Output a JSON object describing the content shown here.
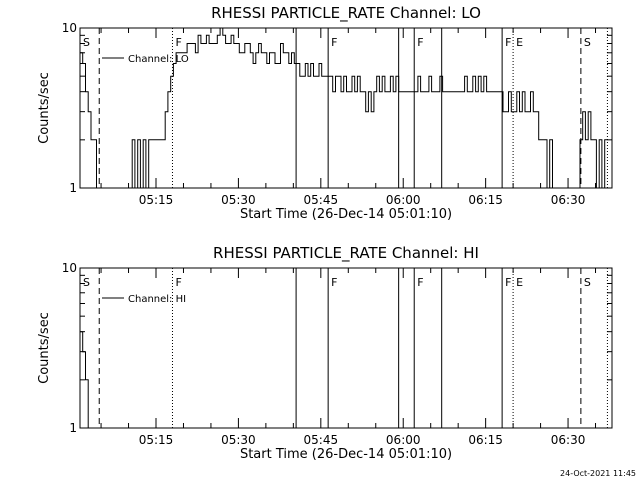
{
  "chart_data": [
    {
      "type": "line",
      "title": "RHESSI PARTICLE_RATE Channel: LO",
      "xlabel": "Start Time (26-Dec-14 05:01:10)",
      "ylabel": "Counts/sec",
      "y_scale": "log",
      "ylim": [
        1,
        10
      ],
      "y_ticks": [
        "1",
        "10"
      ],
      "x_ticks": [
        "05:15",
        "05:30",
        "05:45",
        "06:00",
        "06:15",
        "06:30"
      ],
      "legend": {
        "label": "Channel: LO",
        "placement": "top-left"
      },
      "series": [
        {
          "name": "Channel: LO",
          "x": [
            "05:01:10",
            "05:01:40",
            "05:02:10",
            "05:02:40",
            "05:03:10",
            "05:03:40",
            "05:04:10",
            "05:04:40",
            "05:05:10",
            "05:05:40",
            "05:06:10",
            "05:06:40",
            "05:07:10",
            "05:07:40",
            "05:08:10",
            "05:08:40",
            "05:09:10",
            "05:09:40",
            "05:10:10",
            "05:10:40",
            "05:11:10",
            "05:11:40",
            "05:12:10",
            "05:12:40",
            "05:13:10",
            "05:13:40",
            "05:14:10",
            "05:14:40",
            "05:15:10",
            "05:15:40",
            "05:16:10",
            "05:16:40",
            "05:17:10",
            "05:17:40",
            "05:18:10",
            "05:18:40",
            "05:19:10",
            "05:19:40",
            "05:20:10",
            "05:20:40",
            "05:21:10",
            "05:21:40",
            "05:22:10",
            "05:22:40",
            "05:23:10",
            "05:23:40",
            "05:24:10",
            "05:24:40",
            "05:25:10",
            "05:25:40",
            "05:26:10",
            "05:26:40",
            "05:27:10",
            "05:27:40",
            "05:28:10",
            "05:28:40",
            "05:29:10",
            "05:29:40",
            "05:30:10",
            "05:30:40",
            "05:31:10",
            "05:31:40",
            "05:32:10",
            "05:32:40",
            "05:33:10",
            "05:33:40",
            "05:34:10",
            "05:34:40",
            "05:35:10",
            "05:35:40",
            "05:36:10",
            "05:36:40",
            "05:37:10",
            "05:37:40",
            "05:38:10",
            "05:38:40",
            "05:39:10",
            "05:39:40",
            "05:40:10",
            "05:40:40",
            "05:41:10",
            "05:41:40",
            "05:42:10",
            "05:42:40",
            "05:43:10",
            "05:43:40",
            "05:44:10",
            "05:44:40",
            "05:45:10",
            "05:45:40",
            "05:46:10",
            "05:46:40",
            "05:47:10",
            "05:47:40",
            "05:48:10",
            "05:48:40",
            "05:49:10",
            "05:49:40",
            "05:50:10",
            "05:50:40",
            "05:51:10",
            "05:51:40",
            "05:52:10",
            "05:52:40",
            "05:53:10",
            "05:53:40",
            "05:54:10",
            "05:54:40",
            "05:55:10",
            "05:55:40",
            "05:56:10",
            "05:56:40",
            "05:57:10",
            "05:57:40",
            "05:58:10",
            "05:58:40",
            "05:59:10",
            "05:59:40",
            "06:00:10",
            "06:00:40",
            "06:01:10",
            "06:01:40",
            "06:02:10",
            "06:02:40",
            "06:03:10",
            "06:03:40",
            "06:04:10",
            "06:04:40",
            "06:05:10",
            "06:05:40",
            "06:06:10",
            "06:06:40",
            "06:07:10",
            "06:07:40",
            "06:08:10",
            "06:08:40",
            "06:09:10",
            "06:09:40",
            "06:10:10",
            "06:10:40",
            "06:11:10",
            "06:11:40",
            "06:12:10",
            "06:12:40",
            "06:13:10",
            "06:13:40",
            "06:14:10",
            "06:14:40",
            "06:15:10",
            "06:15:40",
            "06:16:10",
            "06:16:40",
            "06:17:10",
            "06:17:40",
            "06:18:10",
            "06:18:40",
            "06:19:10",
            "06:19:40",
            "06:20:10",
            "06:20:40",
            "06:21:10",
            "06:21:40",
            "06:22:10",
            "06:22:40",
            "06:23:10",
            "06:23:40",
            "06:24:10",
            "06:24:40",
            "06:25:10",
            "06:25:40",
            "06:26:10",
            "06:26:40",
            "06:27:10",
            "06:27:40",
            "06:28:10",
            "06:28:40",
            "06:29:10",
            "06:29:40",
            "06:30:10",
            "06:30:40",
            "06:31:10",
            "06:31:40",
            "06:32:10",
            "06:32:40",
            "06:33:10",
            "06:33:40",
            "06:34:10",
            "06:34:40",
            "06:35:10",
            "06:35:40",
            "06:36:10",
            "06:36:40"
          ],
          "values": [
            7,
            6,
            4,
            3,
            2,
            2,
            1,
            1,
            1,
            1,
            1,
            1,
            1,
            1,
            1,
            1,
            1,
            1,
            1,
            2,
            1,
            2,
            1,
            2,
            1,
            2,
            2,
            2,
            2,
            2,
            2,
            3,
            4,
            5,
            6,
            7,
            7,
            7,
            7,
            8,
            8,
            8,
            7,
            9,
            8,
            8,
            9,
            8,
            8,
            8,
            9,
            10,
            9,
            8,
            8,
            9,
            8,
            8,
            7,
            7,
            8,
            8,
            7,
            6,
            7,
            8,
            7,
            7,
            6,
            7,
            7,
            6,
            6,
            8,
            7,
            7,
            6,
            7,
            6,
            6,
            5,
            5,
            6,
            5,
            6,
            5,
            5,
            6,
            5,
            5,
            5,
            5,
            4,
            5,
            5,
            4,
            5,
            4,
            4,
            5,
            4,
            5,
            4,
            4,
            3,
            4,
            3,
            4,
            5,
            4,
            5,
            4,
            4,
            5,
            4,
            5,
            4,
            4,
            4,
            4,
            4,
            4,
            4,
            5,
            4,
            4,
            4,
            5,
            4,
            4,
            4,
            5,
            4,
            4,
            4,
            4,
            4,
            4,
            4,
            4,
            5,
            4,
            4,
            5,
            4,
            5,
            4,
            5,
            4,
            4,
            4,
            4,
            4,
            4,
            3,
            3,
            4,
            3,
            3,
            4,
            3,
            4,
            3,
            3,
            4,
            3,
            3,
            2,
            2,
            2,
            1,
            2,
            1,
            1,
            1,
            1,
            1,
            1,
            1,
            1,
            1,
            1,
            2,
            3,
            2,
            3,
            2,
            2,
            1,
            2,
            1,
            2
          ]
        }
      ],
      "flags": [
        {
          "time": "05:01:10",
          "label": "S",
          "style": "dashed"
        },
        {
          "time": "05:04:40",
          "label": "",
          "style": "dashed"
        },
        {
          "time": "05:18:00",
          "label": "F",
          "style": "dotted"
        },
        {
          "time": "05:40:30",
          "label": "",
          "style": "solid"
        },
        {
          "time": "05:46:20",
          "label": "F",
          "style": "solid"
        },
        {
          "time": "05:59:10",
          "label": "",
          "style": "solid"
        },
        {
          "time": "06:02:00",
          "label": "F",
          "style": "solid"
        },
        {
          "time": "06:07:00",
          "label": "",
          "style": "solid"
        },
        {
          "time": "06:18:00",
          "label": "F",
          "style": "solid"
        },
        {
          "time": "06:20:00",
          "label": "E",
          "style": "dotted"
        },
        {
          "time": "06:32:20",
          "label": "S",
          "style": "dashed"
        },
        {
          "time": "06:37:10",
          "label": "",
          "style": "dotted"
        }
      ]
    },
    {
      "type": "line",
      "title": "RHESSI PARTICLE_RATE Channel: HI",
      "xlabel": "Start Time (26-Dec-14 05:01:10)",
      "ylabel": "Counts/sec",
      "y_scale": "log",
      "ylim": [
        1,
        10
      ],
      "y_ticks": [
        "1",
        "10"
      ],
      "x_ticks": [
        "05:15",
        "05:30",
        "05:45",
        "06:00",
        "06:15",
        "06:30"
      ],
      "legend": {
        "label": "Channel: HI",
        "placement": "top-left"
      },
      "series": [
        {
          "name": "Channel: HI",
          "x": [
            "05:01:10",
            "05:01:40",
            "05:02:10",
            "05:02:40"
          ],
          "values": [
            4,
            3,
            2,
            1
          ]
        }
      ],
      "flags": [
        {
          "time": "05:01:10",
          "label": "S",
          "style": "dashed"
        },
        {
          "time": "05:04:40",
          "label": "",
          "style": "dashed"
        },
        {
          "time": "05:18:00",
          "label": "F",
          "style": "dotted"
        },
        {
          "time": "05:40:30",
          "label": "",
          "style": "solid"
        },
        {
          "time": "05:46:20",
          "label": "F",
          "style": "solid"
        },
        {
          "time": "05:59:10",
          "label": "",
          "style": "solid"
        },
        {
          "time": "06:02:00",
          "label": "F",
          "style": "solid"
        },
        {
          "time": "06:07:00",
          "label": "",
          "style": "solid"
        },
        {
          "time": "06:18:00",
          "label": "F",
          "style": "solid"
        },
        {
          "time": "06:20:00",
          "label": "E",
          "style": "dotted"
        },
        {
          "time": "06:32:20",
          "label": "S",
          "style": "dashed"
        },
        {
          "time": "06:37:10",
          "label": "",
          "style": "dotted"
        }
      ]
    }
  ],
  "x_range": [
    "05:01:10",
    "06:38:00"
  ],
  "timestamp": "24-Oct-2021 11:45"
}
